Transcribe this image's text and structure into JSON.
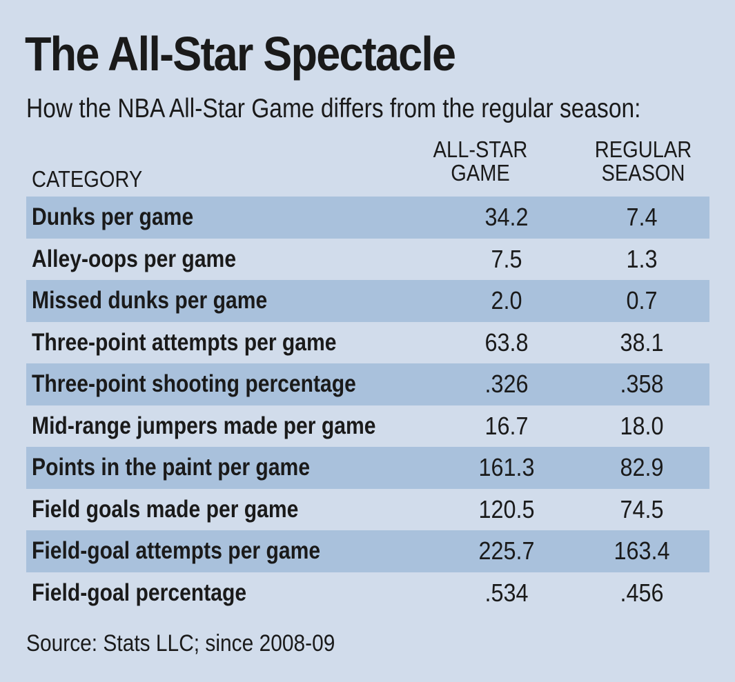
{
  "chart_data": {
    "type": "table",
    "title": "The All-Star Spectacle",
    "subtitle": "How the NBA All-Star Game differs from the regular season:",
    "columns": {
      "category": "CATEGORY",
      "all_star": [
        "ALL-STAR",
        "GAME"
      ],
      "regular": [
        "REGULAR",
        "SEASON"
      ]
    },
    "rows": [
      {
        "category": "Dunks per game",
        "all_star": "34.2",
        "regular": "7.4"
      },
      {
        "category": "Alley-oops per game",
        "all_star": "7.5",
        "regular": "1.3"
      },
      {
        "category": "Missed dunks per game",
        "all_star": "2.0",
        "regular": "0.7"
      },
      {
        "category": "Three-point attempts per game",
        "all_star": "63.8",
        "regular": "38.1"
      },
      {
        "category": "Three-point shooting percentage",
        "all_star": ".326",
        "regular": ".358"
      },
      {
        "category": "Mid-range jumpers made per game",
        "all_star": "16.7",
        "regular": "18.0"
      },
      {
        "category": "Points in the paint per game",
        "all_star": "161.3",
        "regular": "82.9"
      },
      {
        "category": "Field goals made per game",
        "all_star": "120.5",
        "regular": "74.5"
      },
      {
        "category": "Field-goal attempts per game",
        "all_star": "225.7",
        "regular": "163.4"
      },
      {
        "category": "Field-goal percentage",
        "all_star": ".534",
        "regular": ".456"
      }
    ],
    "source": "Source: Stats LLC; since 2008-09"
  },
  "colors": {
    "background": "#d1dceb",
    "row_shade": "#a9c1dc",
    "text": "#1a1a1a"
  }
}
